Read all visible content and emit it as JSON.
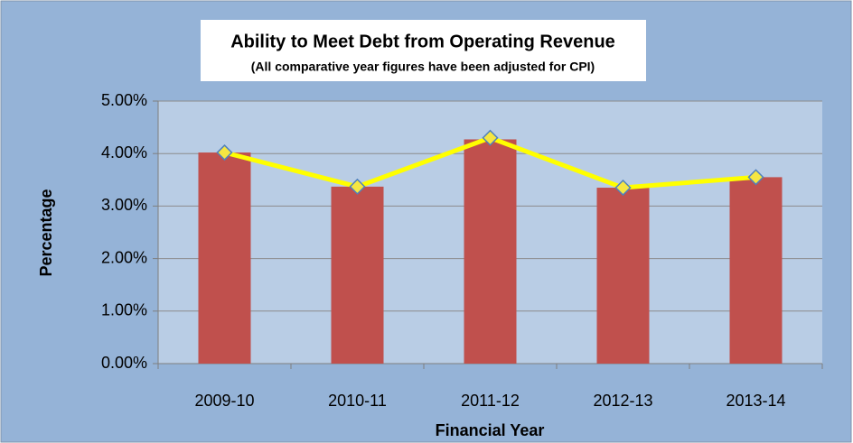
{
  "chart_data": {
    "type": "bar",
    "title": "Ability to Meet Debt from Operating Revenue",
    "subtitle": "(All comparative year figures have been adjusted for CPI)",
    "x_label": "Financial Year",
    "y_label": "Percentage",
    "categories": [
      "2009-10",
      "2010-11",
      "2011-12",
      "2012-13",
      "2013-14"
    ],
    "series": [
      {
        "type": "bar",
        "color": "#c0504d",
        "values": [
          4.02,
          3.37,
          4.27,
          3.35,
          3.55
        ]
      },
      {
        "type": "line",
        "color": "#ffff00",
        "marker_color": "#f5e642",
        "values": [
          4.02,
          3.37,
          4.3,
          3.35,
          3.55
        ]
      }
    ],
    "ylim": [
      0,
      5
    ],
    "yticks": [
      {
        "value": 0,
        "label": "0.00%"
      },
      {
        "value": 1,
        "label": "1.00%"
      },
      {
        "value": 2,
        "label": "2.00%"
      },
      {
        "value": 3,
        "label": "3.00%"
      },
      {
        "value": 4,
        "label": "4.00%"
      },
      {
        "value": 5,
        "label": "5.00%"
      }
    ],
    "grid": true
  }
}
